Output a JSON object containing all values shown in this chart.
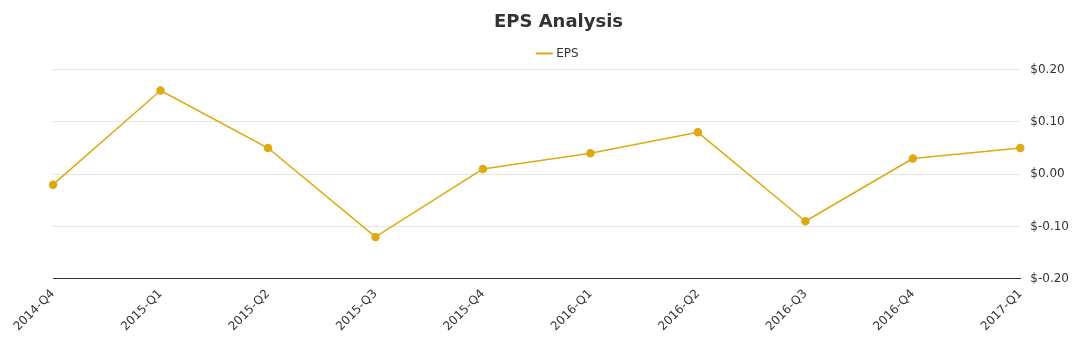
{
  "chart_data": {
    "type": "line",
    "title": "EPS Analysis",
    "categories": [
      "2014-Q4",
      "2015-Q1",
      "2015-Q2",
      "2015-Q3",
      "2015-Q4",
      "2016-Q1",
      "2016-Q2",
      "2016-Q3",
      "2016-Q4",
      "2017-Q1"
    ],
    "series": [
      {
        "name": "EPS",
        "color": "#e0a912",
        "values": [
          -0.02,
          0.16,
          0.05,
          -0.12,
          0.01,
          0.04,
          0.08,
          -0.09,
          0.03,
          0.05
        ]
      }
    ],
    "ylim": [
      -0.2,
      0.2
    ],
    "yticks": [
      {
        "value": -0.2,
        "label": "$-0.20"
      },
      {
        "value": -0.1,
        "label": "$-0.10"
      },
      {
        "value": 0,
        "label": "$0.00"
      },
      {
        "value": 0.1,
        "label": "$0.10"
      },
      {
        "value": 0.2,
        "label": "$0.20"
      }
    ],
    "grid": "y",
    "legend": "top",
    "marker": "circle",
    "line_style": "solid"
  }
}
